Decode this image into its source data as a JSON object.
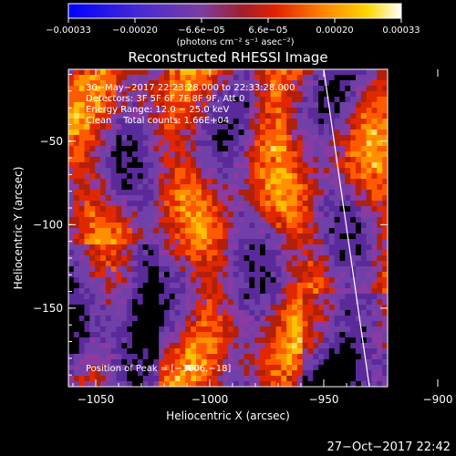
{
  "chart_data": {
    "type": "heatmap",
    "title": "Reconstructed RHESSI Image",
    "xlabel": "Heliocentric X (arcsec)",
    "ylabel": "Heliocentric Y (arcsec)",
    "xlim": [
      -1062,
      -922
    ],
    "ylim": [
      -197,
      -7
    ],
    "x_ticks": [
      {
        "value": -1050,
        "label": "−1050"
      },
      {
        "value": -1000,
        "label": "−1000"
      },
      {
        "value": -950,
        "label": "−950"
      },
      {
        "value": -900,
        "label": "−900"
      }
    ],
    "y_ticks": [
      {
        "value": -50,
        "label": "−50"
      },
      {
        "value": -100,
        "label": "−100"
      },
      {
        "value": -150,
        "label": "−150"
      }
    ],
    "colorbar": {
      "range": [
        -0.00033,
        0.00033
      ],
      "tick_labels": [
        "−0.00033",
        "−0.00020",
        "−6.6e−05",
        "6.6e−05",
        "0.00020",
        "0.00033"
      ],
      "units": "(photons cm⁻² s⁻¹ asec⁻²)",
      "colors": [
        "#0000ff",
        "#5a24a8",
        "#7b3ea0",
        "#b02a10",
        "#ff3000",
        "#ff9000",
        "#ffd000",
        "#ffffff"
      ]
    },
    "annotations": [
      "30−May−2017 22:23:28.000 to 22:33:28.000",
      "Detectors: 3F 5F 6F 7F 8F 9F, Att 0",
      "Energy Range: 12.0 − 25.0 keV",
      "Clean    Total counts: 1.66E+04"
    ],
    "peak_label": "Position of Peak = [−1006,−18]",
    "limb_line": {
      "x": [
        -950,
        -930
      ],
      "y": [
        -7,
        -197
      ]
    },
    "grid": false
  },
  "footer": {
    "timestamp": "27−Oct−2017 22:42"
  }
}
